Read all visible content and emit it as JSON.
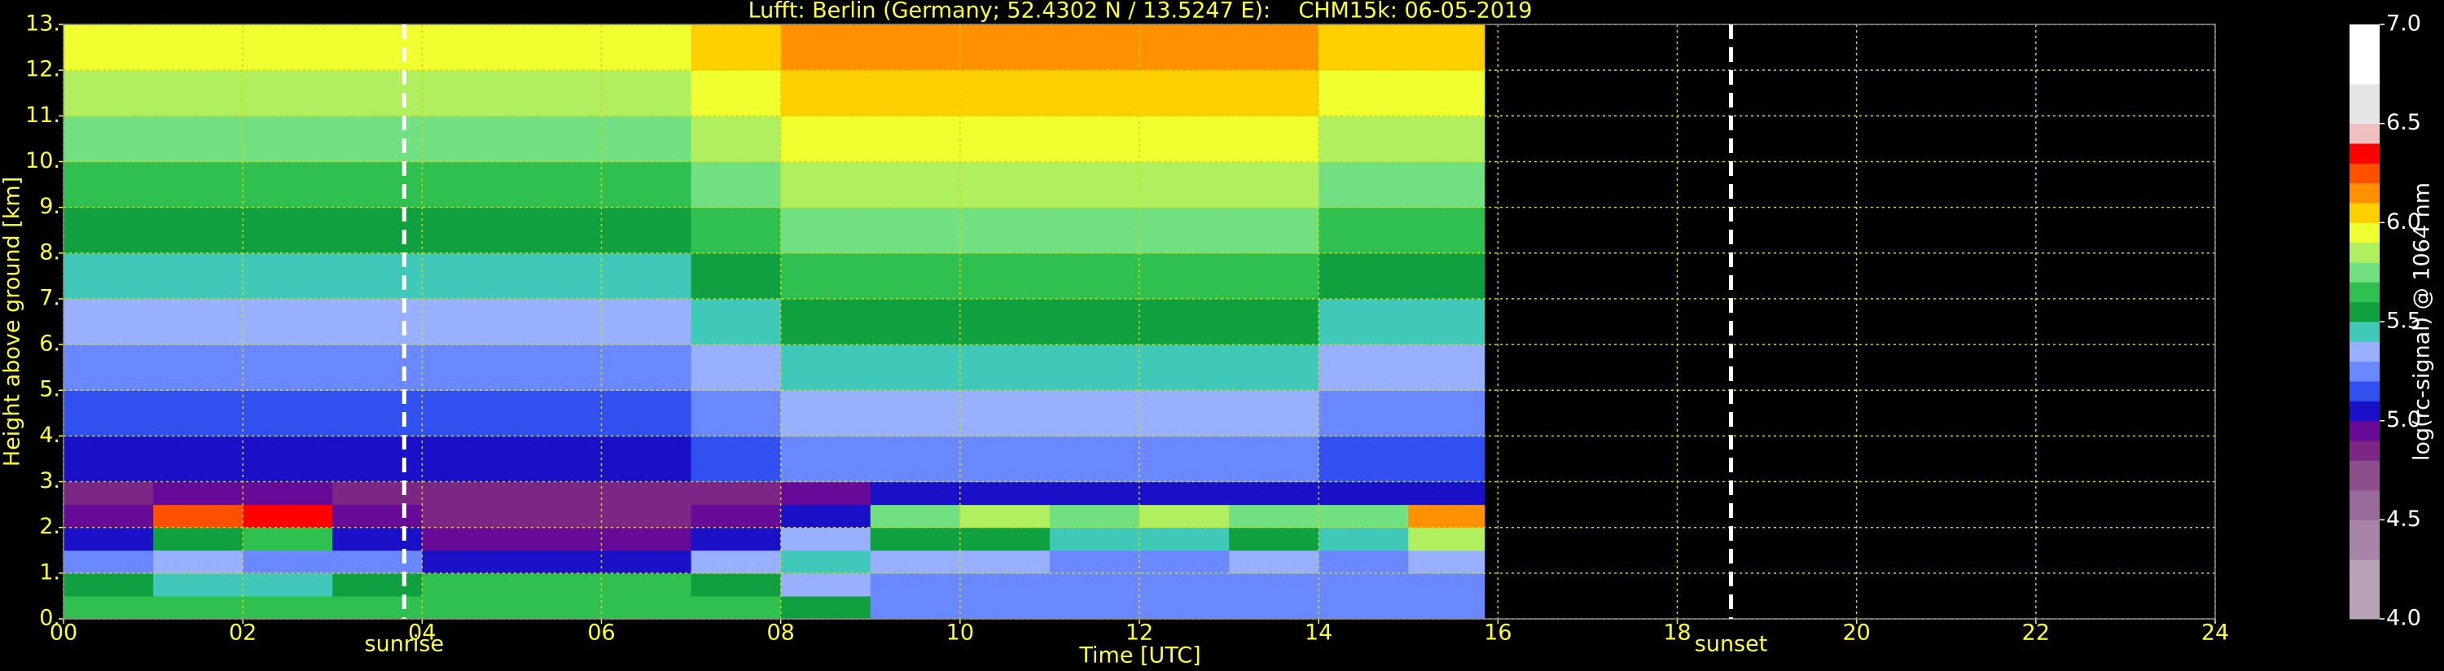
{
  "chart_data": {
    "type": "heatmap",
    "title": "Lufft: Berlin (Germany; 52.4302 N / 13.5247 E):    CHM15k: 06-05-2019",
    "xlabel": "Time [UTC]",
    "ylabel": "Height above ground [km]",
    "xlim": [
      0,
      24
    ],
    "ylim": [
      0,
      13
    ],
    "xticks": [
      {
        "value": 0,
        "label": "00"
      },
      {
        "value": 2,
        "label": "02"
      },
      {
        "value": 4,
        "label": "04"
      },
      {
        "value": 6,
        "label": "06"
      },
      {
        "value": 8,
        "label": "08"
      },
      {
        "value": 10,
        "label": "10"
      },
      {
        "value": 12,
        "label": "12"
      },
      {
        "value": 14,
        "label": "14"
      },
      {
        "value": 16,
        "label": "16"
      },
      {
        "value": 18,
        "label": "18"
      },
      {
        "value": 20,
        "label": "20"
      },
      {
        "value": 22,
        "label": "22"
      },
      {
        "value": 24,
        "label": "24"
      }
    ],
    "yticks": [
      {
        "value": 0,
        "label": "0."
      },
      {
        "value": 1,
        "label": "1."
      },
      {
        "value": 2,
        "label": "2."
      },
      {
        "value": 3,
        "label": "3."
      },
      {
        "value": 4,
        "label": "4."
      },
      {
        "value": 5,
        "label": "5."
      },
      {
        "value": 6,
        "label": "6."
      },
      {
        "value": 7,
        "label": "7."
      },
      {
        "value": 8,
        "label": "8."
      },
      {
        "value": 9,
        "label": "9."
      },
      {
        "value": 10,
        "label": "10."
      },
      {
        "value": 11,
        "label": "11."
      },
      {
        "value": 12,
        "label": "12."
      },
      {
        "value": 13,
        "label": "13."
      }
    ],
    "grid": true,
    "grid_color": "#d8d800",
    "x_bins": [
      0,
      1,
      2,
      3,
      4,
      5,
      6,
      7,
      8,
      9,
      10,
      11,
      12,
      13,
      14,
      15,
      15.85
    ],
    "y_bins": [
      0,
      0.5,
      1,
      1.5,
      2,
      2.5,
      3,
      4,
      5,
      6,
      7,
      8,
      9,
      10,
      11,
      12,
      13
    ],
    "values": [
      [
        5.6,
        5.6,
        5.6,
        5.6,
        5.6,
        5.6,
        5.6,
        5.6,
        5.5,
        5.2,
        5.2,
        5.2,
        5.2,
        5.2,
        5.2,
        5.2
      ],
      [
        5.5,
        5.4,
        5.4,
        5.5,
        5.6,
        5.6,
        5.6,
        5.5,
        5.3,
        5.2,
        5.2,
        5.2,
        5.2,
        5.2,
        5.2,
        5.2
      ],
      [
        5.2,
        5.3,
        5.2,
        5.2,
        5.0,
        5.0,
        5.0,
        5.3,
        5.4,
        5.3,
        5.3,
        5.2,
        5.2,
        5.3,
        5.2,
        5.3
      ],
      [
        5.0,
        5.5,
        5.6,
        5.0,
        4.9,
        4.9,
        4.9,
        5.0,
        5.3,
        5.5,
        5.5,
        5.4,
        5.4,
        5.5,
        5.4,
        5.8
      ],
      [
        4.9,
        6.2,
        6.3,
        4.9,
        4.8,
        4.8,
        4.8,
        4.9,
        5.0,
        5.7,
        5.8,
        5.7,
        5.8,
        5.7,
        5.7,
        6.1
      ],
      [
        4.8,
        4.9,
        4.9,
        4.8,
        4.8,
        4.8,
        4.8,
        4.8,
        4.9,
        5.0,
        5.0,
        5.0,
        5.0,
        5.0,
        5.0,
        5.0
      ],
      [
        5.0,
        5.0,
        5.0,
        5.0,
        5.0,
        5.0,
        5.0,
        5.1,
        5.2,
        5.2,
        5.2,
        5.2,
        5.2,
        5.2,
        5.1,
        5.1
      ],
      [
        5.1,
        5.1,
        5.1,
        5.1,
        5.1,
        5.1,
        5.1,
        5.2,
        5.3,
        5.3,
        5.3,
        5.3,
        5.3,
        5.3,
        5.2,
        5.2
      ],
      [
        5.2,
        5.2,
        5.2,
        5.2,
        5.2,
        5.2,
        5.2,
        5.3,
        5.4,
        5.4,
        5.4,
        5.4,
        5.4,
        5.4,
        5.3,
        5.3
      ],
      [
        5.3,
        5.3,
        5.3,
        5.3,
        5.3,
        5.3,
        5.3,
        5.4,
        5.5,
        5.5,
        5.5,
        5.5,
        5.5,
        5.5,
        5.4,
        5.4
      ],
      [
        5.4,
        5.4,
        5.4,
        5.4,
        5.4,
        5.4,
        5.4,
        5.5,
        5.6,
        5.6,
        5.6,
        5.6,
        5.6,
        5.6,
        5.5,
        5.5
      ],
      [
        5.5,
        5.5,
        5.5,
        5.5,
        5.5,
        5.5,
        5.5,
        5.6,
        5.7,
        5.7,
        5.7,
        5.7,
        5.7,
        5.7,
        5.6,
        5.6
      ],
      [
        5.6,
        5.6,
        5.6,
        5.6,
        5.6,
        5.6,
        5.6,
        5.7,
        5.8,
        5.8,
        5.8,
        5.8,
        5.8,
        5.8,
        5.7,
        5.7
      ],
      [
        5.7,
        5.7,
        5.7,
        5.7,
        5.7,
        5.7,
        5.7,
        5.8,
        5.9,
        5.9,
        5.9,
        5.9,
        5.9,
        5.9,
        5.8,
        5.8
      ],
      [
        5.8,
        5.8,
        5.8,
        5.8,
        5.8,
        5.8,
        5.8,
        5.9,
        6.0,
        6.0,
        6.0,
        6.0,
        6.0,
        6.0,
        5.9,
        5.9
      ],
      [
        5.9,
        5.9,
        5.9,
        5.9,
        5.9,
        5.9,
        5.9,
        6.0,
        6.1,
        6.1,
        6.1,
        6.1,
        6.1,
        6.1,
        6.0,
        6.0
      ]
    ],
    "annotations": [
      {
        "text": "sunrise",
        "x": 3.8
      },
      {
        "text": "sunset",
        "x": 18.6
      }
    ],
    "colorbar": {
      "label": "log(rc-signal) @ 1064 nm",
      "lim": [
        4,
        7
      ],
      "ticks": [
        {
          "value": 4,
          "label": "4.0"
        },
        {
          "value": 4.5,
          "label": "4.5"
        },
        {
          "value": 5,
          "label": "5.0"
        },
        {
          "value": 5.5,
          "label": "5.5"
        },
        {
          "value": 6,
          "label": "6.0"
        },
        {
          "value": 6.5,
          "label": "6.5"
        },
        {
          "value": 7,
          "label": "7.0"
        }
      ],
      "levels": [
        4.0,
        4.3,
        4.5,
        4.65,
        4.8,
        4.9,
        5.0,
        5.1,
        5.2,
        5.3,
        5.4,
        5.5,
        5.6,
        5.7,
        5.8,
        5.9,
        6.0,
        6.1,
        6.2,
        6.3,
        6.4,
        6.5,
        6.7,
        7.0
      ],
      "colors": [
        "#b8a2b8",
        "#a884a8",
        "#9a6a9a",
        "#8e4e8e",
        "#7c2686",
        "#680a98",
        "#1a10c8",
        "#3050f0",
        "#6a88ff",
        "#98b0ff",
        "#40c8b8",
        "#10a040",
        "#30c050",
        "#70e080",
        "#b0f060",
        "#f0ff30",
        "#ffd000",
        "#ff9000",
        "#ff5000",
        "#ff0000",
        "#f0c0c0",
        "#e6e6e6",
        "#ffffff"
      ]
    }
  }
}
